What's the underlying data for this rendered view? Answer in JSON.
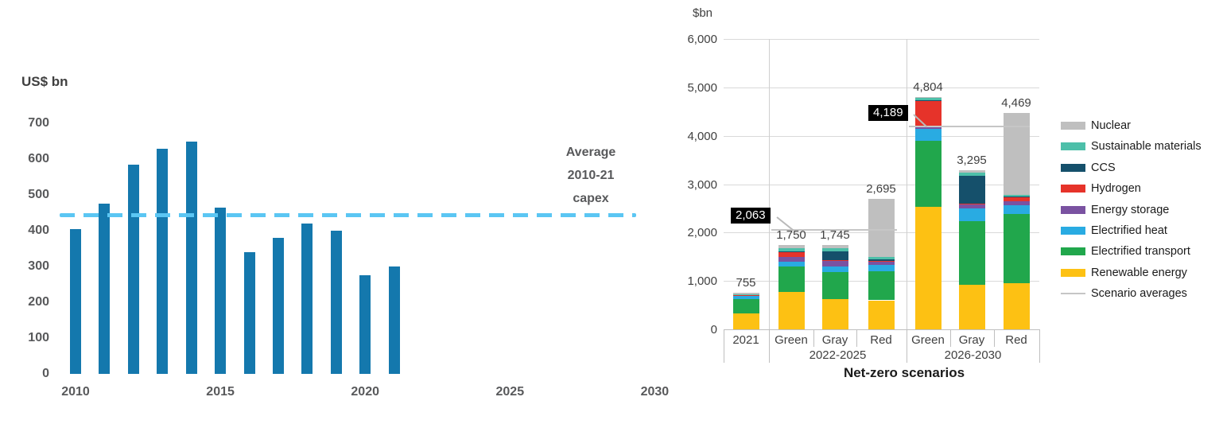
{
  "left_chart": {
    "type": "bar",
    "title": "US$ bn",
    "years": [
      2010,
      2011,
      2012,
      2013,
      2014,
      2015,
      2016,
      2017,
      2018,
      2019,
      2020,
      2021
    ],
    "values": [
      405,
      475,
      585,
      628,
      648,
      465,
      340,
      380,
      420,
      400,
      275,
      300
    ],
    "bar_color": "#1478ad",
    "y_ticks": [
      0,
      100,
      200,
      300,
      400,
      500,
      600,
      700
    ],
    "x_ticks": [
      "2010",
      "2015",
      "2020",
      "2025",
      "2030"
    ],
    "x_tick_years": [
      2010,
      2015,
      2020,
      2025,
      2030
    ],
    "ylim": [
      0,
      700
    ],
    "xlim": [
      2010,
      2030
    ],
    "average_line": {
      "value": 444,
      "color": "#5bc6f3",
      "style": "dashed",
      "label_lines": [
        "Average",
        "2010-21",
        "capex"
      ]
    }
  },
  "right_chart": {
    "type": "stacked-bar",
    "title": "$bn",
    "axis_title": "Net-zero scenarios",
    "ylim": [
      0,
      6000
    ],
    "grid": true,
    "y_ticks": [
      {
        "v": 0,
        "label": "0"
      },
      {
        "v": 1000,
        "label": "1,000"
      },
      {
        "v": 2000,
        "label": "2,000"
      },
      {
        "v": 3000,
        "label": "3,000"
      },
      {
        "v": 4000,
        "label": "4,000"
      },
      {
        "v": 5000,
        "label": "5,000"
      },
      {
        "v": 6000,
        "label": "6,000"
      }
    ],
    "series": [
      {
        "key": "renewable",
        "name": "Renewable energy",
        "color": "#fdc113"
      },
      {
        "key": "transport",
        "name": "Electrified transport",
        "color": "#21a74c"
      },
      {
        "key": "heat",
        "name": "Electrified heat",
        "color": "#29abe2"
      },
      {
        "key": "storage",
        "name": "Energy storage",
        "color": "#7a52a1"
      },
      {
        "key": "hydrogen",
        "name": "Hydrogen",
        "color": "#e6332a"
      },
      {
        "key": "ccs",
        "name": "CCS",
        "color": "#15506b"
      },
      {
        "key": "sustainable",
        "name": "Sustainable materials",
        "color": "#4dbfa9"
      },
      {
        "key": "nuclear",
        "name": "Nuclear",
        "color": "#bfbfbf"
      }
    ],
    "bars": [
      {
        "category": "2021",
        "group": 0,
        "total": 755,
        "total_label": "755",
        "segments": [
          325,
          300,
          60,
          15,
          10,
          10,
          10,
          25
        ]
      },
      {
        "category": "Green",
        "group": 1,
        "total": 1750,
        "total_label": "1,750",
        "segments": [
          780,
          520,
          95,
          100,
          95,
          15,
          65,
          80
        ]
      },
      {
        "category": "Gray",
        "group": 1,
        "total": 1745,
        "total_label": "1,745",
        "segments": [
          630,
          560,
          110,
          110,
          15,
          185,
          60,
          75
        ]
      },
      {
        "category": "Red",
        "group": 1,
        "total": 2695,
        "total_label": "2,695",
        "segments": [
          600,
          605,
          120,
          70,
          25,
          25,
          50,
          1200
        ]
      },
      {
        "category": "Green",
        "group": 2,
        "total": 4804,
        "total_label": "4,804",
        "segments": [
          2530,
          1370,
          240,
          65,
          520,
          15,
          44,
          20
        ]
      },
      {
        "category": "Gray",
        "group": 2,
        "total": 3295,
        "total_label": "3,295",
        "segments": [
          915,
          1315,
          275,
          80,
          15,
          580,
          55,
          60
        ]
      },
      {
        "category": "Red",
        "group": 2,
        "total": 4469,
        "total_label": "4,469",
        "segments": [
          955,
          1425,
          185,
          85,
          85,
          15,
          25,
          1694
        ]
      }
    ],
    "group_labels": [
      "2022-2025",
      "2026-2030"
    ],
    "scenario_averages": [
      {
        "group": 1,
        "value": 2063,
        "label": "2,063"
      },
      {
        "group": 2,
        "value": 4189,
        "label": "4,189"
      }
    ],
    "legend": [
      {
        "name": "Nuclear",
        "color": "#bfbfbf",
        "shape": "swatch"
      },
      {
        "name": "Sustainable materials",
        "color": "#4dbfa9",
        "shape": "swatch"
      },
      {
        "name": "CCS",
        "color": "#15506b",
        "shape": "swatch"
      },
      {
        "name": "Hydrogen",
        "color": "#e6332a",
        "shape": "swatch"
      },
      {
        "name": "Energy storage",
        "color": "#7a52a1",
        "shape": "swatch"
      },
      {
        "name": "Electrified heat",
        "color": "#29abe2",
        "shape": "swatch"
      },
      {
        "name": "Electrified transport",
        "color": "#21a74c",
        "shape": "swatch"
      },
      {
        "name": "Renewable energy",
        "color": "#fdc113",
        "shape": "swatch"
      },
      {
        "name": "Scenario averages",
        "color": "#c6c6c6",
        "shape": "line"
      }
    ]
  }
}
